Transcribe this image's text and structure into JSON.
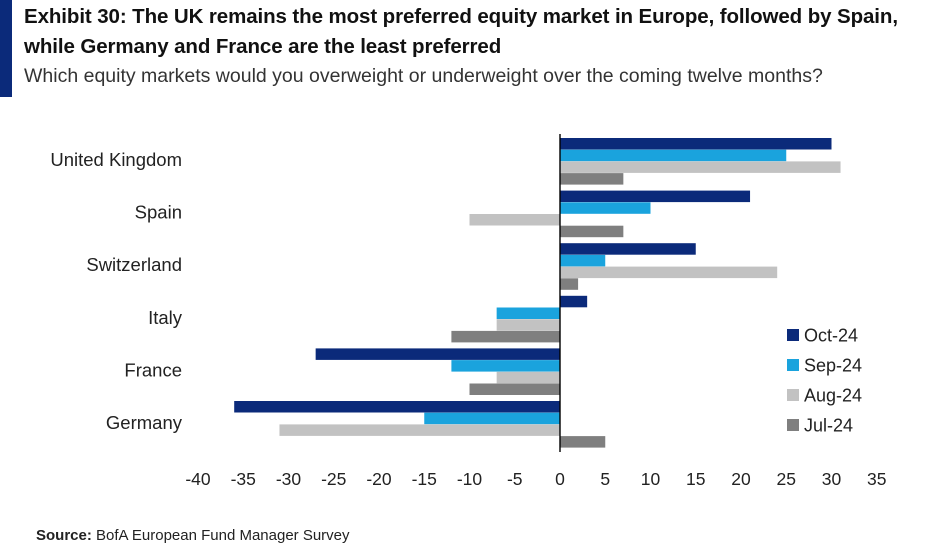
{
  "header": {
    "title": "Exhibit 30: The UK remains the most preferred equity market in Europe, followed by Spain, while Germany and France are the least preferred",
    "subtitle": "Which equity markets would you overweight or underweight over the coming twelve months?"
  },
  "footer": {
    "source_label": "Source:",
    "source_text": "BofA European Fund Manager Survey"
  },
  "colors": {
    "accent": "#0b2a7a",
    "oct": "#0b2a7a",
    "sep": "#1aa3dd",
    "aug": "#c2c2c2",
    "jul": "#7f7f7f"
  },
  "chart_data": {
    "type": "bar",
    "orientation": "horizontal",
    "categories": [
      "United Kingdom",
      "Spain",
      "Switzerland",
      "Italy",
      "France",
      "Germany"
    ],
    "series": [
      {
        "name": "Oct-24",
        "color": "#0b2a7a",
        "values": [
          30,
          21,
          15,
          3,
          -27,
          -36
        ]
      },
      {
        "name": "Sep-24",
        "color": "#1aa3dd",
        "values": [
          25,
          10,
          5,
          -7,
          -12,
          -15
        ]
      },
      {
        "name": "Aug-24",
        "color": "#c2c2c2",
        "values": [
          31,
          -10,
          24,
          -7,
          -7,
          -31
        ]
      },
      {
        "name": "Jul-24",
        "color": "#7f7f7f",
        "values": [
          7,
          7,
          2,
          -12,
          -10,
          5
        ]
      }
    ],
    "xlim": [
      -40,
      35
    ],
    "xticks": [
      -40,
      -35,
      -30,
      -25,
      -20,
      -15,
      -10,
      -5,
      0,
      5,
      10,
      15,
      20,
      25,
      30,
      35
    ],
    "grid": false,
    "legend_position": "right"
  }
}
